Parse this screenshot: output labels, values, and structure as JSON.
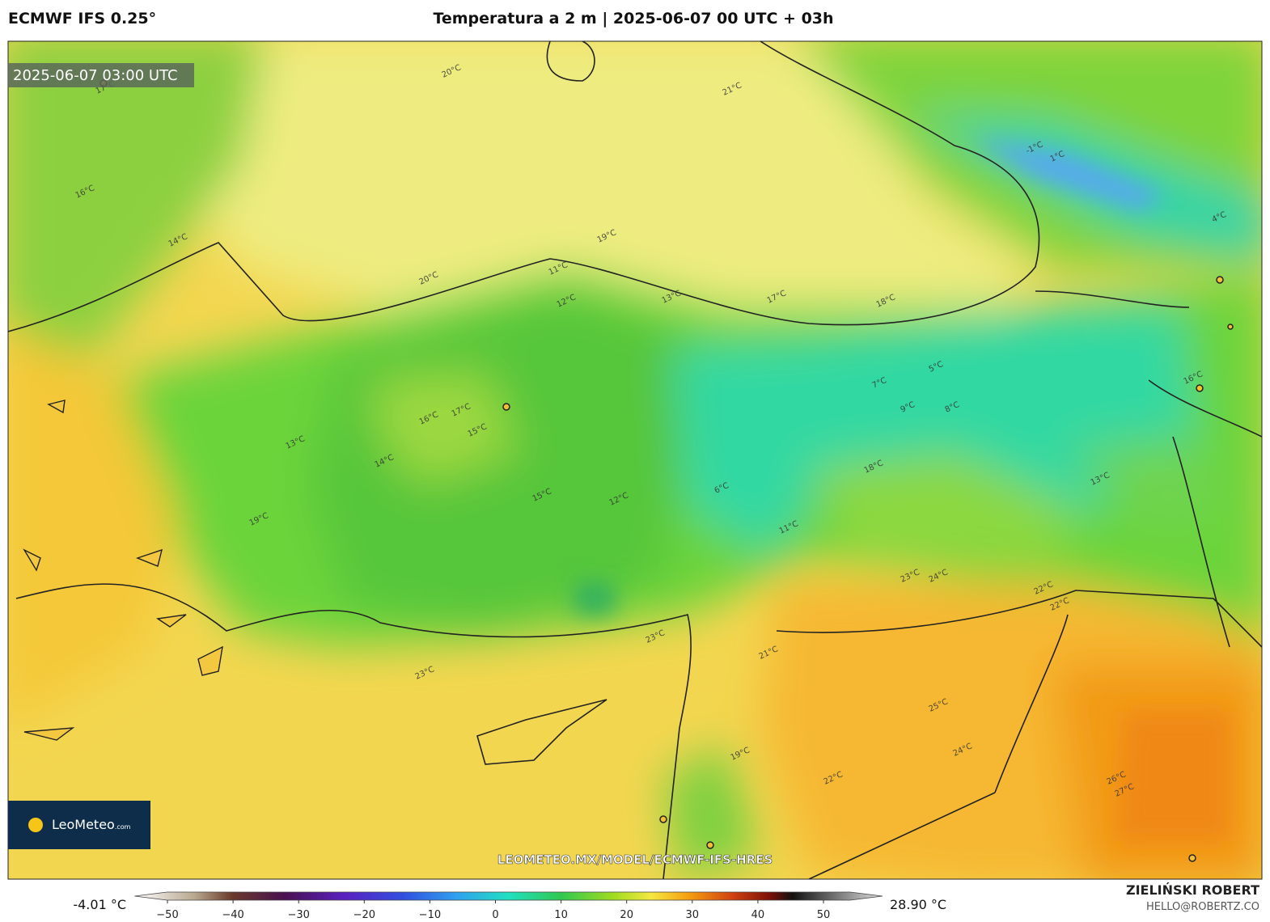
{
  "header": {
    "model": "ECMWF IFS 0.25°",
    "title": "Temperatura a 2 m | 2025-06-07 00 UTC + 03h"
  },
  "map": {
    "valid_time": "2025-06-07 03:00 UTC",
    "watermark": "LEOMETEO.MX/MODEL/ECMWF-IFS-HRES",
    "logo": {
      "name": "LeoMeteo",
      "suffix": ".com"
    },
    "contour_labels": [
      "17°C",
      "16°C",
      "14°C",
      "20°C",
      "21°C",
      "19°C",
      "20°C",
      "17°C",
      "18°C",
      "11°C",
      "12°C",
      "13°C",
      "15°C",
      "16°C",
      "17°C",
      "15°C",
      "14°C",
      "13°C",
      "12°C",
      "6°C",
      "5°C",
      "7°C",
      "9°C",
      "8°C",
      "18°C",
      "11°C",
      "23°C",
      "24°C",
      "22°C",
      "23°C",
      "21°C",
      "19°C",
      "22°C",
      "25°C",
      "26°C",
      "27°C",
      "24°C",
      "22°C",
      "1°C",
      "4°C",
      "16°C",
      "13°C",
      "-1°C",
      "19°C",
      "23°C"
    ]
  },
  "colorbar": {
    "min_label": "-4.01 °C",
    "max_label": "28.90 °C",
    "lim": [
      -55,
      59
    ],
    "ticks": [
      {
        "value": -50,
        "label": "−50"
      },
      {
        "value": -40,
        "label": "−40"
      },
      {
        "value": -30,
        "label": "−30"
      },
      {
        "value": -20,
        "label": "−20"
      },
      {
        "value": -10,
        "label": "−10"
      },
      0,
      10,
      20,
      30,
      40,
      50
    ]
  },
  "credit": {
    "name": "ZIELIŃSKI ROBERT",
    "email": "HELLO@ROBERTZ.CO"
  }
}
